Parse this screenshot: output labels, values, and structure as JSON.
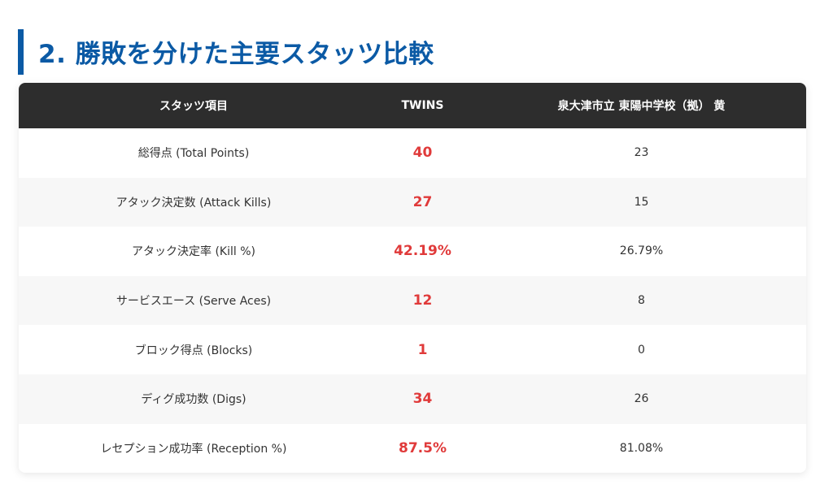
{
  "section": {
    "title": "2. 勝敗を分けた主要スタッツ比較"
  },
  "colors": {
    "accent": "#0b5aa5",
    "header_bg": "#2d2d2d",
    "highlight": "#e03a3a"
  },
  "table": {
    "headers": [
      "スタッツ項目",
      "TWINS",
      "泉大津市立 東陽中学校（拠） 黄"
    ],
    "rows": [
      {
        "label": "総得点 (Total Points)",
        "twins": "40",
        "opponent": "23"
      },
      {
        "label": "アタック決定数 (Attack Kills)",
        "twins": "27",
        "opponent": "15"
      },
      {
        "label": "アタック決定率 (Kill %)",
        "twins": "42.19%",
        "opponent": "26.79%"
      },
      {
        "label": "サービスエース (Serve Aces)",
        "twins": "12",
        "opponent": "8"
      },
      {
        "label": "ブロック得点 (Blocks)",
        "twins": "1",
        "opponent": "0"
      },
      {
        "label": "ディグ成功数 (Digs)",
        "twins": "34",
        "opponent": "26"
      },
      {
        "label": "レセプション成功率 (Reception %)",
        "twins": "87.5%",
        "opponent": "81.08%"
      }
    ]
  }
}
